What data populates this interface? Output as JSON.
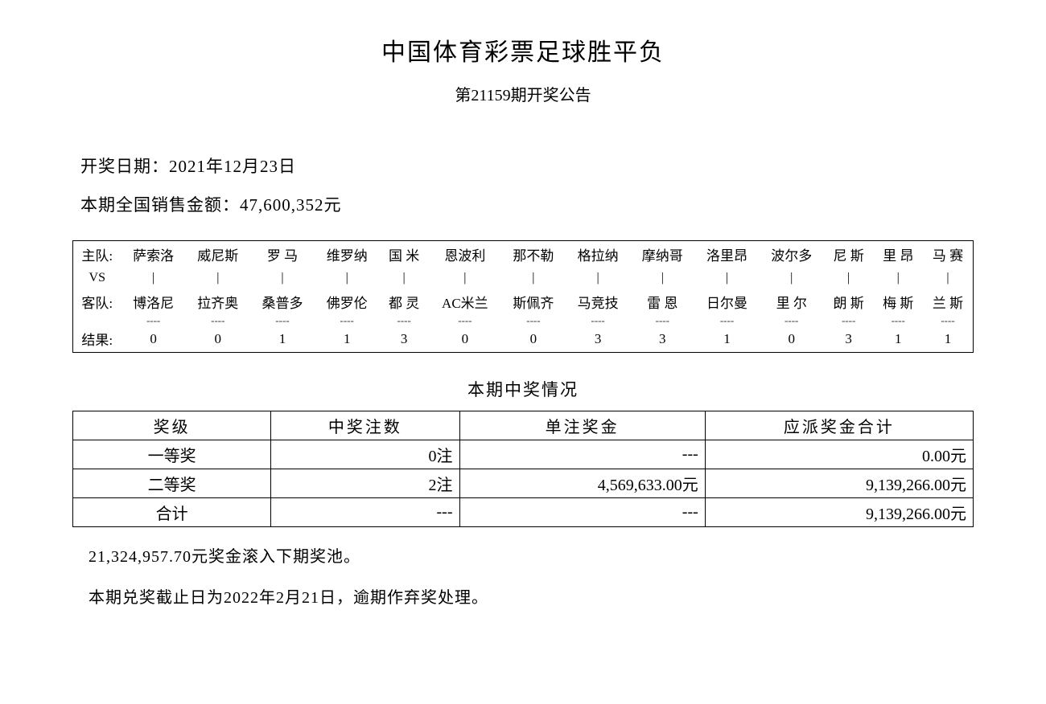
{
  "title": "中国体育彩票足球胜平负",
  "subtitle": "第21159期开奖公告",
  "draw_date_label": "开奖日期：",
  "draw_date_value": "2021年12月23日",
  "sales_label": "本期全国销售金额：",
  "sales_value": "47,600,352元",
  "match_labels": {
    "home": "主队:",
    "vs": "VS",
    "away": "客队:",
    "result": "结果:"
  },
  "matches": {
    "home": [
      "萨索洛",
      "威尼斯",
      "罗 马",
      "维罗纳",
      "国 米",
      "恩波利",
      "那不勒",
      "格拉纳",
      "摩纳哥",
      "洛里昂",
      "波尔多",
      "尼 斯",
      "里 昂",
      "马 赛"
    ],
    "away": [
      "博洛尼",
      "拉齐奥",
      "桑普多",
      "佛罗伦",
      "都 灵",
      "AC米兰",
      "斯佩齐",
      "马竞技",
      "雷 恩",
      "日尔曼",
      "里 尔",
      "朗 斯",
      "梅 斯",
      "兰 斯"
    ],
    "result": [
      "0",
      "0",
      "1",
      "1",
      "3",
      "0",
      "0",
      "3",
      "3",
      "1",
      "0",
      "3",
      "1",
      "1"
    ]
  },
  "vs_mark": "|",
  "dash_mark": "----",
  "prize_section_title": "本期中奖情况",
  "prize_table": {
    "headers": [
      "奖级",
      "中奖注数",
      "单注奖金",
      "应派奖金合计"
    ],
    "rows": [
      {
        "level": "一等奖",
        "count": "0注",
        "per": "---",
        "total": "0.00元"
      },
      {
        "level": "二等奖",
        "count": "2注",
        "per": "4,569,633.00元",
        "total": "9,139,266.00元"
      },
      {
        "level": "合计",
        "count": "---",
        "per": "---",
        "total": "9,139,266.00元"
      }
    ]
  },
  "rollover_text": "21,324,957.70元奖金滚入下期奖池。",
  "deadline_text": "本期兑奖截止日为2022年2月21日，逾期作弃奖处理。"
}
